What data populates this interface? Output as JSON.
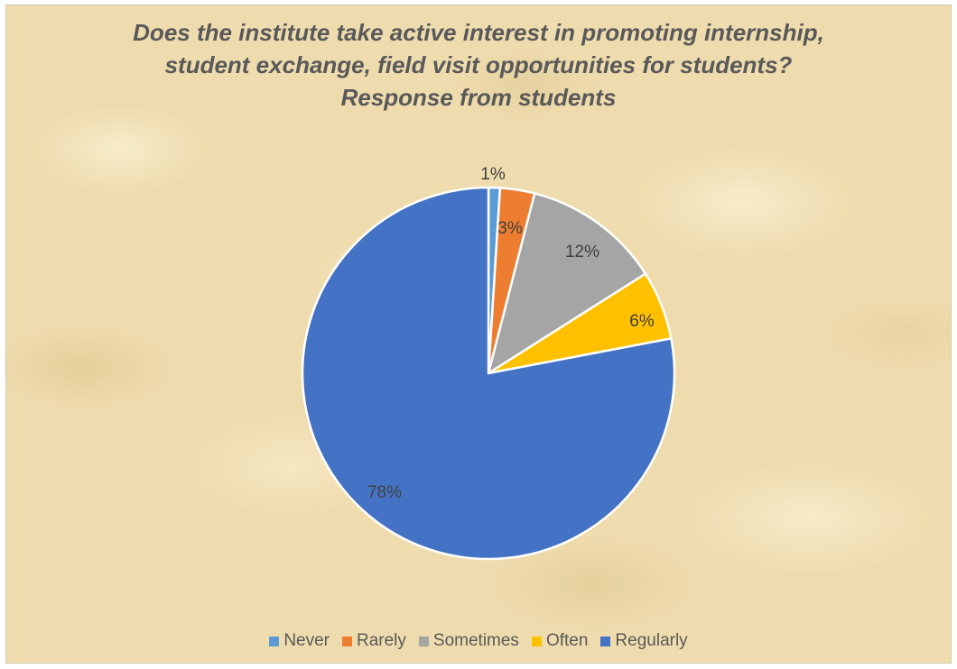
{
  "chart_data": {
    "type": "pie",
    "title_lines": [
      "Does the institute take active interest in promoting internship,",
      "student exchange, field visit opportunities for students?",
      "Response from students"
    ],
    "categories": [
      "Never",
      "Rarely",
      "Sometimes",
      "Often",
      "Regularly"
    ],
    "values": [
      1,
      3,
      12,
      6,
      78
    ],
    "data_labels": [
      "1%",
      "3%",
      "12%",
      "6%",
      "78%"
    ],
    "colors": [
      "#5B9BD5",
      "#ED7D31",
      "#A5A5A5",
      "#FFC000",
      "#4472C4"
    ],
    "legend_position": "bottom",
    "start_angle": "12 o'clock",
    "direction": "clockwise"
  }
}
